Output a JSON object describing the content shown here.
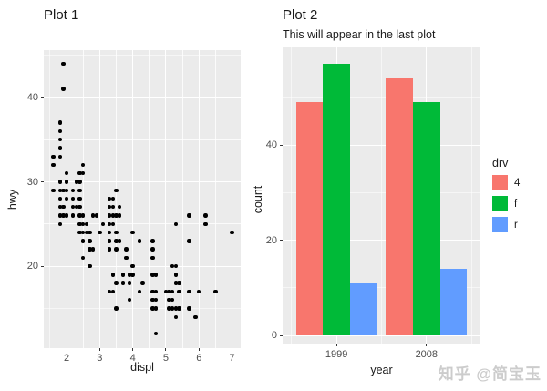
{
  "watermark": "知乎 @简宝玉",
  "chart_data": [
    {
      "type": "scatter",
      "title": "Plot 1",
      "xlabel": "displ",
      "ylabel": "hwy",
      "x_ticks": [
        2,
        3,
        4,
        5,
        6,
        7
      ],
      "y_ticks": [
        20,
        30,
        40
      ],
      "xlim": [
        1.31,
        7.26
      ],
      "ylim": [
        10.3,
        45.6
      ],
      "grid": true,
      "point_color": "#000000",
      "points": [
        [
          1.9,
          44
        ],
        [
          1.9,
          41
        ],
        [
          1.8,
          37
        ],
        [
          1.8,
          36
        ],
        [
          1.8,
          35
        ],
        [
          1.8,
          34
        ],
        [
          1.6,
          33
        ],
        [
          1.8,
          33
        ],
        [
          1.6,
          32
        ],
        [
          2.5,
          32
        ],
        [
          2.0,
          31
        ],
        [
          2.4,
          31
        ],
        [
          2.5,
          31
        ],
        [
          1.8,
          30
        ],
        [
          2.0,
          30
        ],
        [
          2.3,
          30
        ],
        [
          2.4,
          30
        ],
        [
          1.6,
          29
        ],
        [
          1.8,
          29
        ],
        [
          1.9,
          29
        ],
        [
          2.0,
          29
        ],
        [
          2.2,
          29
        ],
        [
          2.4,
          29
        ],
        [
          3.5,
          29
        ],
        [
          1.8,
          28
        ],
        [
          2.0,
          28
        ],
        [
          2.2,
          28
        ],
        [
          2.4,
          28
        ],
        [
          3.3,
          28
        ],
        [
          3.4,
          28
        ],
        [
          1.8,
          27
        ],
        [
          1.9,
          27
        ],
        [
          2.2,
          27
        ],
        [
          2.3,
          27
        ],
        [
          2.4,
          27
        ],
        [
          3.3,
          27
        ],
        [
          3.4,
          27
        ],
        [
          3.6,
          27
        ],
        [
          1.8,
          26
        ],
        [
          1.9,
          26
        ],
        [
          2.0,
          26
        ],
        [
          2.2,
          26
        ],
        [
          2.4,
          26
        ],
        [
          2.5,
          26
        ],
        [
          2.8,
          26
        ],
        [
          2.9,
          26
        ],
        [
          3.3,
          26
        ],
        [
          3.4,
          26
        ],
        [
          3.5,
          26
        ],
        [
          3.6,
          26
        ],
        [
          5.7,
          26
        ],
        [
          6.2,
          26
        ],
        [
          1.8,
          25
        ],
        [
          2.4,
          25
        ],
        [
          2.5,
          25
        ],
        [
          2.6,
          25
        ],
        [
          3.1,
          25
        ],
        [
          3.3,
          25
        ],
        [
          3.4,
          25
        ],
        [
          5.3,
          25
        ],
        [
          6.2,
          25
        ],
        [
          2.4,
          24
        ],
        [
          2.5,
          24
        ],
        [
          2.6,
          24
        ],
        [
          2.7,
          24
        ],
        [
          3.0,
          24
        ],
        [
          3.3,
          24
        ],
        [
          3.5,
          24
        ],
        [
          4.0,
          24
        ],
        [
          7.0,
          24
        ],
        [
          2.5,
          23
        ],
        [
          2.7,
          23
        ],
        [
          3.3,
          23
        ],
        [
          3.5,
          23
        ],
        [
          3.6,
          23
        ],
        [
          4.2,
          23
        ],
        [
          4.6,
          23
        ],
        [
          5.7,
          23
        ],
        [
          2.7,
          22
        ],
        [
          2.8,
          22
        ],
        [
          3.3,
          22
        ],
        [
          3.5,
          22
        ],
        [
          3.8,
          22
        ],
        [
          4.6,
          22
        ],
        [
          2.5,
          21
        ],
        [
          3.8,
          21
        ],
        [
          4.6,
          21
        ],
        [
          2.7,
          20
        ],
        [
          4.0,
          20
        ],
        [
          5.2,
          20
        ],
        [
          5.3,
          20
        ],
        [
          3.4,
          19
        ],
        [
          3.7,
          19
        ],
        [
          3.9,
          19
        ],
        [
          4.0,
          19
        ],
        [
          4.6,
          19
        ],
        [
          4.7,
          19
        ],
        [
          5.3,
          19
        ],
        [
          3.5,
          18
        ],
        [
          3.7,
          18
        ],
        [
          3.9,
          18
        ],
        [
          4.3,
          18
        ],
        [
          5.3,
          18
        ],
        [
          5.4,
          18
        ],
        [
          3.3,
          17
        ],
        [
          3.4,
          17
        ],
        [
          4.2,
          17
        ],
        [
          4.6,
          17
        ],
        [
          4.7,
          17
        ],
        [
          5.0,
          17
        ],
        [
          5.1,
          17
        ],
        [
          5.2,
          17
        ],
        [
          5.4,
          17
        ],
        [
          5.7,
          17
        ],
        [
          6.0,
          17
        ],
        [
          6.5,
          17
        ],
        [
          3.9,
          16
        ],
        [
          4.6,
          16
        ],
        [
          4.7,
          16
        ],
        [
          5.1,
          16
        ],
        [
          5.2,
          16
        ],
        [
          3.5,
          15
        ],
        [
          4.6,
          15
        ],
        [
          4.7,
          15
        ],
        [
          5.1,
          15
        ],
        [
          5.2,
          15
        ],
        [
          5.3,
          15
        ],
        [
          5.4,
          15
        ],
        [
          5.7,
          15
        ],
        [
          5.3,
          14
        ],
        [
          5.9,
          14
        ],
        [
          4.7,
          12
        ]
      ]
    },
    {
      "type": "bar",
      "title": "Plot 2",
      "subtitle": "This will appear in the last plot",
      "xlabel": "year",
      "ylabel": "count",
      "categories": [
        "1999",
        "2008"
      ],
      "series": [
        {
          "name": "4",
          "color": "#F8766D",
          "values": [
            49,
            54
          ]
        },
        {
          "name": "f",
          "color": "#00BA38",
          "values": [
            57,
            49
          ]
        },
        {
          "name": "r",
          "color": "#619CFF",
          "values": [
            11,
            14
          ]
        }
      ],
      "y_ticks": [
        0,
        20,
        40
      ],
      "ylim": [
        -1.72,
        60.5
      ],
      "grid": true,
      "legend_title": "drv",
      "legend_position": "right"
    }
  ]
}
